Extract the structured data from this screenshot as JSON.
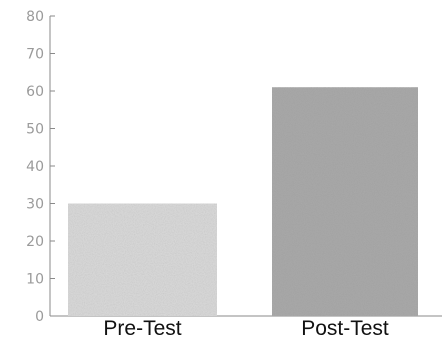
{
  "chart_data": {
    "type": "bar",
    "categories": [
      "Pre-Test",
      "Post-Test"
    ],
    "values": [
      30,
      61
    ],
    "ylim": [
      0,
      80
    ],
    "yticks": [
      "0",
      "10",
      "20",
      "30",
      "40",
      "50",
      "60",
      "70",
      "80"
    ],
    "grid": false,
    "legend": "none",
    "title": "",
    "xlabel": "",
    "ylabel": "",
    "colors": {
      "bars": [
        "#d6d6d6",
        "#a9a9a9"
      ],
      "axis": "#8a8a8a",
      "text": "#111111",
      "tick_text": "#9a9a9a"
    }
  }
}
